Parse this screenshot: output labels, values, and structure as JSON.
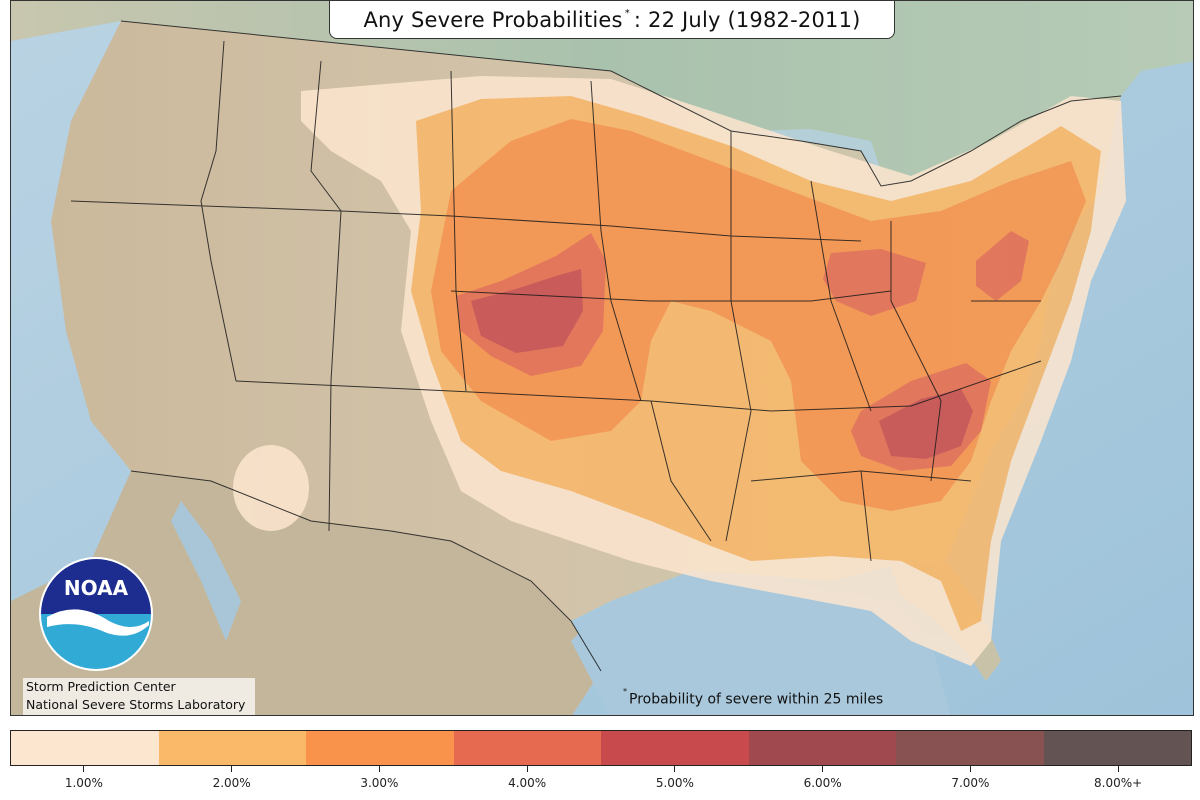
{
  "map": {
    "title": "Any Severe Probabilities",
    "title_marker": "*",
    "title_date": ": 22 July (1982-2011)",
    "footnote_marker": "*",
    "footnote": "Probability of severe within 25 miles",
    "credits": [
      "Storm Prediction Center",
      "National Severe Storms Laboratory"
    ],
    "logo_text": "NOAA",
    "colors": {
      "ocean": "#a8c8dc",
      "land_canada": "#b9cdb8",
      "land_mexico": "#c9c1a8",
      "land_us": "#cdbfa6",
      "border": "#1a1a1a"
    }
  },
  "legend": {
    "bins": [
      {
        "label": "1.00%",
        "color": "#fde6cf"
      },
      {
        "label": "2.00%",
        "color": "#fab869"
      },
      {
        "label": "3.00%",
        "color": "#f9924a"
      },
      {
        "label": "4.00%",
        "color": "#e56a4f"
      },
      {
        "label": "5.00%",
        "color": "#c84a4d"
      },
      {
        "label": "6.00%",
        "color": "#a04a4f"
      },
      {
        "label": "7.00%",
        "color": "#885253"
      },
      {
        "label": "8.00%+",
        "color": "#635352"
      }
    ]
  }
}
